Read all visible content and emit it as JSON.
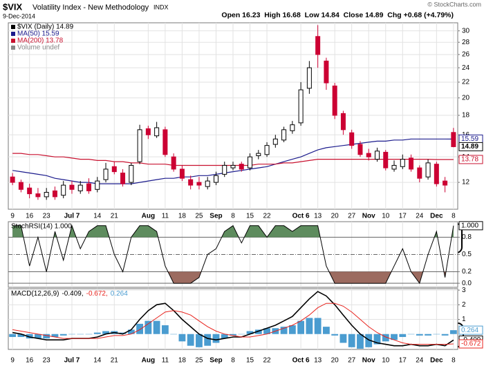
{
  "header": {
    "symbol": "$VIX",
    "name": "Volatility Index - New Methodology",
    "exchange": "INDX",
    "date": "9-Dec-2014",
    "quote": "Open 16.23  High 16.68  Low 14.84  Close 14.89  Chg +0.68 (+4.79%)",
    "credit": "© StockCharts.com"
  },
  "chart_data": [
    {
      "type": "candlestick",
      "log_scale": true,
      "grid": true,
      "ylim": [
        10.2,
        31.5
      ],
      "yticks": [
        12,
        14,
        16,
        18,
        20,
        22,
        24,
        26,
        28,
        30
      ],
      "xticks": [
        {
          "value": 0,
          "label": "9"
        },
        {
          "value": 2,
          "label": "16"
        },
        {
          "value": 4,
          "label": "23"
        },
        {
          "value": 7,
          "label": "Jul 7"
        },
        {
          "value": 10,
          "label": "14"
        },
        {
          "value": 12,
          "label": "21"
        },
        {
          "value": 16,
          "label": "Aug"
        },
        {
          "value": 18,
          "label": "11"
        },
        {
          "value": 20,
          "label": "18"
        },
        {
          "value": 22,
          "label": "25"
        },
        {
          "value": 24,
          "label": "Sep"
        },
        {
          "value": 26,
          "label": "8"
        },
        {
          "value": 28,
          "label": "15"
        },
        {
          "value": 30,
          "label": "22"
        },
        {
          "value": 34,
          "label": "Oct 6"
        },
        {
          "value": 36,
          "label": "13"
        },
        {
          "value": 38,
          "label": "20"
        },
        {
          "value": 40,
          "label": "27"
        },
        {
          "value": 42,
          "label": "Nov"
        },
        {
          "value": 44,
          "label": "10"
        },
        {
          "value": 46,
          "label": "17"
        },
        {
          "value": 48,
          "label": "24"
        },
        {
          "value": 50,
          "label": "Dec"
        },
        {
          "value": 52,
          "label": "8"
        }
      ],
      "candles": {
        "name": "$VIX (Daily) 14.89",
        "up_color": "#000000",
        "down_color": "#cc0033",
        "open": [
          12.4,
          12.0,
          11.6,
          11.2,
          11.0,
          11.4,
          11.1,
          11.8,
          11.4,
          11.9,
          11.5,
          12.2,
          13.2,
          12.7,
          12.0,
          13.6,
          16.6,
          15.9,
          16.5,
          14.0,
          13.0,
          12.2,
          12.0,
          11.7,
          12.0,
          12.6,
          13.1,
          13.4,
          13.1,
          14.1,
          14.2,
          15.1,
          15.5,
          16.4,
          17.2,
          21.2,
          29.0,
          25.0,
          21.5,
          18.2,
          16.2,
          15.1,
          14.3,
          13.8,
          14.4,
          13.0,
          13.2,
          13.9,
          13.1,
          12.4,
          13.4,
          12.1,
          16.23
        ],
        "high": [
          12.7,
          12.2,
          11.9,
          11.6,
          11.6,
          11.7,
          12.1,
          12.1,
          12.1,
          12.3,
          12.4,
          13.5,
          13.6,
          13.0,
          13.5,
          17.0,
          16.9,
          17.3,
          16.8,
          14.3,
          13.3,
          12.5,
          12.4,
          12.4,
          12.8,
          13.6,
          13.6,
          13.6,
          14.3,
          14.6,
          15.3,
          16.0,
          16.8,
          17.4,
          22.0,
          25.0,
          31.06,
          25.5,
          21.9,
          18.5,
          16.5,
          15.4,
          14.7,
          14.8,
          14.6,
          13.7,
          14.2,
          14.2,
          13.3,
          13.8,
          13.6,
          12.4,
          16.68
        ],
        "low": [
          11.8,
          11.3,
          10.9,
          10.8,
          10.8,
          10.8,
          10.9,
          11.2,
          11.2,
          11.2,
          11.3,
          12.0,
          12.6,
          11.7,
          11.8,
          13.4,
          15.6,
          15.7,
          14.0,
          12.8,
          12.1,
          11.5,
          11.5,
          11.5,
          11.8,
          12.4,
          12.9,
          12.8,
          12.9,
          13.8,
          14.0,
          14.8,
          15.3,
          16.1,
          16.9,
          20.5,
          24.0,
          21.0,
          17.6,
          16.0,
          14.7,
          14.0,
          13.7,
          13.6,
          12.9,
          12.8,
          13.0,
          12.8,
          12.0,
          12.2,
          11.7,
          11.3,
          14.84
        ],
        "close": [
          12.0,
          11.5,
          11.2,
          11.0,
          11.3,
          11.0,
          11.8,
          11.5,
          11.8,
          11.4,
          12.1,
          13.0,
          12.8,
          11.9,
          13.3,
          16.5,
          16.0,
          16.7,
          14.2,
          13.0,
          12.3,
          11.8,
          11.8,
          12.1,
          12.5,
          13.3,
          13.3,
          13.0,
          14.0,
          14.3,
          15.0,
          15.6,
          16.5,
          17.0,
          21.0,
          24.0,
          26.0,
          21.9,
          18.0,
          16.5,
          15.0,
          14.2,
          14.0,
          14.5,
          13.1,
          13.3,
          13.8,
          13.0,
          12.3,
          13.5,
          11.9,
          11.8,
          14.89
        ]
      },
      "series": [
        {
          "name": "MA(50) 15.59",
          "color": "#1a1a8c",
          "values": [
            12.9,
            12.8,
            12.7,
            12.6,
            12.5,
            12.3,
            12.2,
            12.1,
            12.0,
            12.0,
            11.9,
            11.9,
            11.9,
            11.9,
            11.9,
            12.0,
            12.1,
            12.2,
            12.3,
            12.3,
            12.4,
            12.4,
            12.5,
            12.5,
            12.6,
            12.7,
            12.8,
            12.9,
            13.0,
            13.1,
            13.2,
            13.4,
            13.6,
            13.8,
            14.0,
            14.3,
            14.6,
            14.8,
            14.9,
            15.0,
            15.1,
            15.2,
            15.3,
            15.4,
            15.4,
            15.5,
            15.5,
            15.6,
            15.6,
            15.6,
            15.6,
            15.6,
            15.59
          ]
        },
        {
          "name": "MA(200) 13.78",
          "color": "#c8102e",
          "values": [
            14.3,
            14.3,
            14.2,
            14.2,
            14.1,
            14.0,
            14.0,
            13.9,
            13.8,
            13.8,
            13.7,
            13.7,
            13.6,
            13.6,
            13.5,
            13.5,
            13.4,
            13.4,
            13.4,
            13.3,
            13.3,
            13.3,
            13.3,
            13.3,
            13.3,
            13.3,
            13.3,
            13.3,
            13.3,
            13.4,
            13.4,
            13.4,
            13.5,
            13.5,
            13.6,
            13.7,
            13.8,
            13.8,
            13.8,
            13.8,
            13.8,
            13.8,
            13.8,
            13.8,
            13.8,
            13.8,
            13.8,
            13.8,
            13.8,
            13.8,
            13.78,
            13.78,
            13.78
          ]
        }
      ],
      "volume_legend": "Volume undef",
      "tags": [
        {
          "value": 15.59,
          "color": "#1a1a8c"
        },
        {
          "value": 14.89,
          "color": "#000000"
        },
        {
          "value": 13.78,
          "color": "#c8102e"
        }
      ]
    },
    {
      "type": "line",
      "title": "StochRSI(14) 1.000",
      "grid": true,
      "ylim": [
        -0.07,
        1.07
      ],
      "yticks": [
        0.8,
        0.5,
        0.2,
        {
          "value": 0,
          "label": "0.0"
        }
      ],
      "overbought": 0.8,
      "oversold": 0.2,
      "fill_colors": [
        "#5e8c5e",
        "#9c6b60"
      ],
      "series": [
        {
          "color": "#000000",
          "values": [
            1,
            1,
            0.3,
            0.8,
            0.2,
            0.9,
            0.4,
            1,
            0.6,
            0.9,
            1,
            1,
            0.5,
            0.2,
            0.8,
            1,
            1,
            0.9,
            0.3,
            0,
            0,
            0,
            0.1,
            0.5,
            0.6,
            0.9,
            1,
            0.7,
            1,
            1,
            0.8,
            1,
            1,
            0.9,
            1,
            1,
            1,
            0.3,
            0,
            0,
            0,
            0,
            0,
            0,
            0,
            0.3,
            0.6,
            0.2,
            0,
            0.5,
            0.9,
            0.1,
            1
          ]
        }
      ],
      "tag": {
        "value": 1,
        "label": "1.000"
      }
    },
    {
      "type": "macd",
      "legend_title": "MACD(12,26,9)",
      "grid": true,
      "ylim": [
        -1.05,
        3.1
      ],
      "yticks": [
        1,
        2,
        3
      ],
      "series": [
        {
          "name": "-0.409,",
          "color": "#000000",
          "kind": "line",
          "values": [
            0.1,
            0.0,
            -0.2,
            -0.3,
            -0.4,
            -0.4,
            -0.4,
            -0.3,
            -0.3,
            -0.3,
            -0.2,
            0.0,
            0.1,
            0.0,
            0.3,
            1.0,
            1.6,
            2.0,
            2.1,
            1.6,
            1.0,
            0.5,
            0.0,
            -0.3,
            -0.4,
            -0.3,
            -0.2,
            -0.2,
            0.0,
            0.2,
            0.4,
            0.6,
            0.9,
            1.2,
            1.8,
            2.4,
            2.9,
            2.6,
            2.0,
            1.3,
            0.6,
            0.0,
            -0.4,
            -0.6,
            -0.7,
            -0.8,
            -0.8,
            -0.7,
            -0.8,
            -0.8,
            -0.7,
            -0.8,
            -0.409
          ]
        },
        {
          "name": "-0.672,",
          "color": "#e8221c",
          "kind": "line",
          "values": [
            0.3,
            0.2,
            0.1,
            0.0,
            -0.1,
            -0.2,
            -0.3,
            -0.3,
            -0.3,
            -0.3,
            -0.3,
            -0.2,
            -0.1,
            -0.1,
            0.0,
            0.3,
            0.7,
            1.1,
            1.5,
            1.6,
            1.5,
            1.3,
            0.9,
            0.5,
            0.2,
            0.0,
            -0.1,
            -0.2,
            -0.2,
            -0.1,
            0.0,
            0.2,
            0.4,
            0.6,
            0.9,
            1.3,
            1.8,
            2.1,
            2.1,
            1.9,
            1.5,
            1.0,
            0.5,
            0.1,
            -0.2,
            -0.4,
            -0.6,
            -0.7,
            -0.7,
            -0.7,
            -0.7,
            -0.7,
            -0.672
          ]
        },
        {
          "name": "0.264",
          "color": "#4a9cd0",
          "kind": "histogram",
          "values": [
            -0.2,
            -0.2,
            -0.3,
            -0.3,
            -0.3,
            -0.2,
            -0.1,
            0,
            0,
            0,
            0.1,
            0.2,
            0.2,
            0.1,
            0.3,
            0.7,
            0.9,
            0.9,
            0.6,
            0,
            -0.5,
            -0.8,
            -0.9,
            -0.8,
            -0.6,
            -0.3,
            -0.1,
            0,
            0.2,
            0.3,
            0.4,
            0.4,
            0.5,
            0.6,
            0.9,
            1.1,
            1.1,
            0.5,
            -0.1,
            -0.6,
            -0.9,
            -1.0,
            -0.9,
            -0.7,
            -0.5,
            -0.4,
            -0.2,
            0,
            -0.1,
            -0.1,
            0,
            -0.1,
            0.264
          ]
        }
      ],
      "tags": [
        {
          "value": 0.264,
          "color": "#4a9cd0"
        },
        {
          "value": -0.409,
          "color": "#000000"
        },
        {
          "value": -0.672,
          "color": "#e8221c"
        }
      ]
    }
  ]
}
